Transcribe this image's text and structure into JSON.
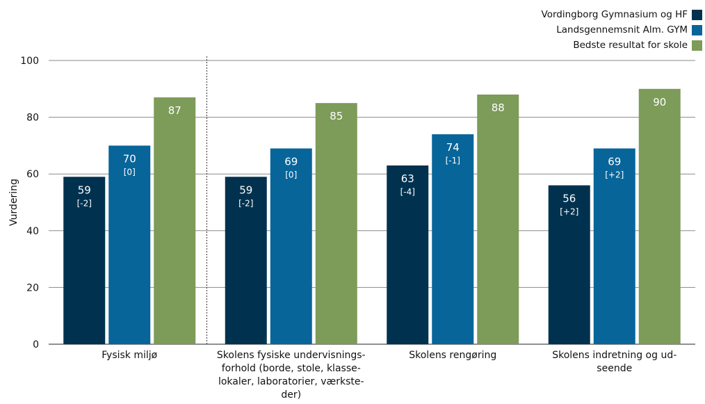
{
  "chart_data": {
    "type": "bar",
    "ylabel": "Vurdering",
    "ylim": [
      0,
      100
    ],
    "yticks": [
      0,
      20,
      40,
      60,
      80,
      100
    ],
    "grid": true,
    "legend_position": "top-right",
    "categories": [
      "Fysisk miljø",
      "Skolens fysiske undervisnings-forhold (borde, stole, klasse-lokaler, laboratorier, værkste-der)",
      "Skolens rengøring",
      "Skolens indretning og ud-seende"
    ],
    "category_label_lines": [
      [
        "Fysisk miljø"
      ],
      [
        "Skolens fysiske undervisnings-",
        "forhold (borde, stole, klasse-",
        "lokaler, laboratorier, værkste-",
        "der)"
      ],
      [
        "Skolens rengøring"
      ],
      [
        "Skolens indretning og ud-",
        "seende"
      ]
    ],
    "series": [
      {
        "name": "Vordingborg Gymnasium og HF",
        "color": "#00324f",
        "values": [
          59,
          59,
          63,
          56
        ],
        "labels": [
          "59",
          "59",
          "63",
          "56"
        ],
        "sublabels": [
          "[-2]",
          "[-2]",
          "[-4]",
          "[+2]"
        ]
      },
      {
        "name": "Landsgennemsnit Alm. GYM",
        "color": "#07659a",
        "values": [
          70,
          69,
          74,
          69
        ],
        "labels": [
          "70",
          "69",
          "74",
          "69"
        ],
        "sublabels": [
          "[0]",
          "[0]",
          "[-1]",
          "[+2]"
        ]
      },
      {
        "name": "Bedste resultat for skole",
        "color": "#7d9b59",
        "values": [
          87,
          85,
          88,
          90
        ],
        "labels": [
          "87",
          "85",
          "88",
          "90"
        ],
        "sublabels": [
          "",
          "",
          "",
          ""
        ]
      }
    ]
  }
}
